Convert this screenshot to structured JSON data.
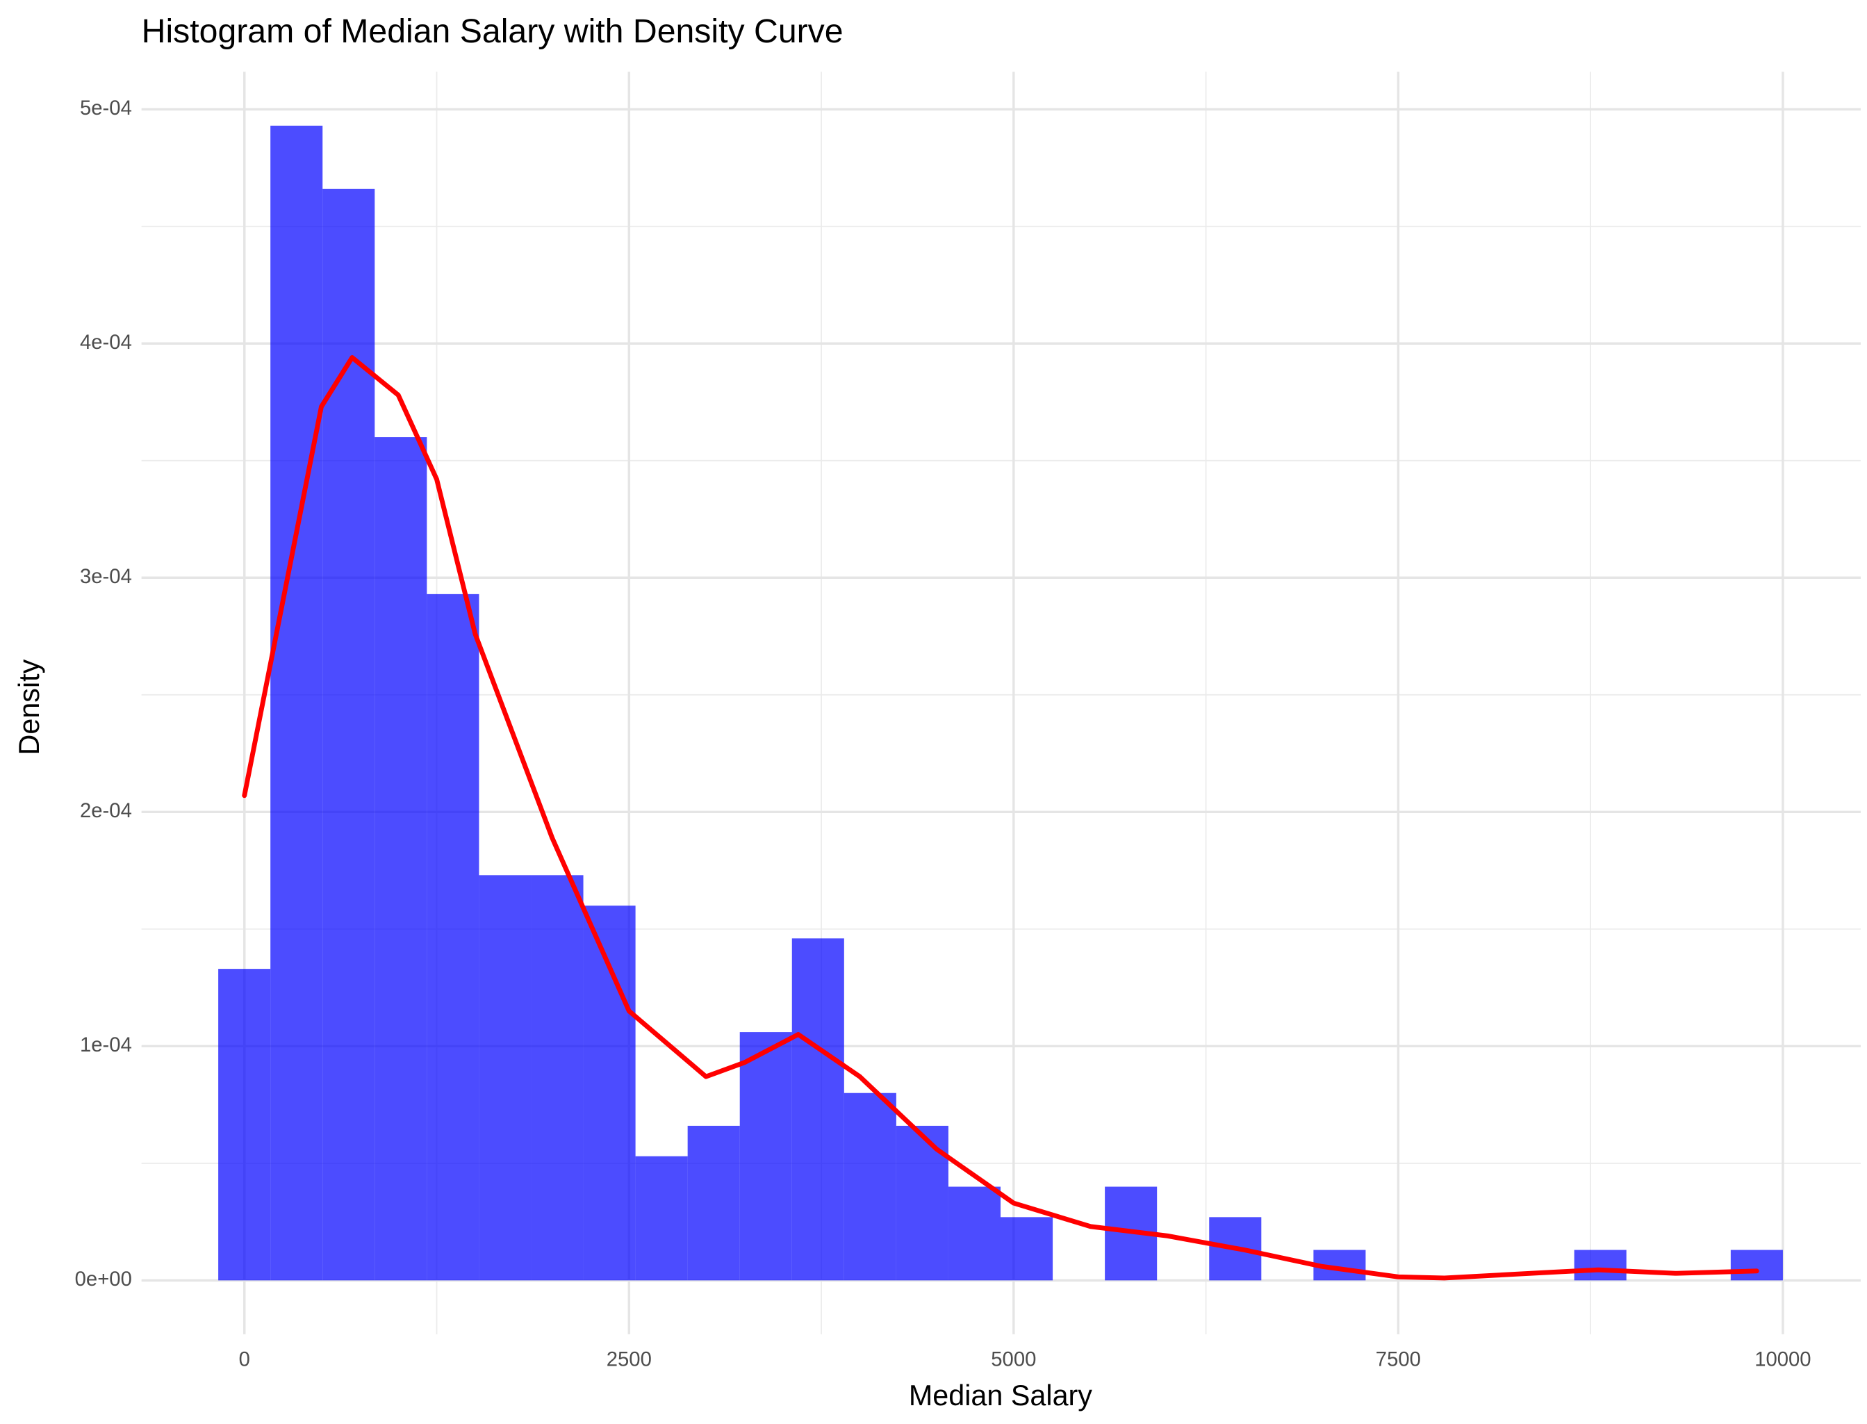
{
  "chart_data": {
    "type": "histogram",
    "title": "Histogram of Median Salary with Density Curve",
    "x_label": "Median Salary",
    "y_label": "Density",
    "bins": [
      -170,
      169,
      508,
      847,
      1186,
      1525,
      1864,
      2203,
      2542,
      2881,
      3220,
      3559,
      3898,
      4237,
      4576,
      4915,
      5254,
      5593,
      5932,
      6271,
      6610,
      6949,
      7288,
      7627,
      7966,
      8305,
      8644,
      8983,
      9322,
      9661,
      10000
    ],
    "values": [
      0.000133,
      0.000493,
      0.000466,
      0.00036,
      0.000293,
      0.000173,
      0.000173,
      0.00016,
      5.3e-05,
      6.6e-05,
      0.000106,
      0.000146,
      8e-05,
      6.6e-05,
      4e-05,
      2.7e-05,
      0,
      4e-05,
      0,
      2.7e-05,
      0,
      1.3e-05,
      0,
      0,
      0,
      0,
      1.3e-05,
      0,
      0,
      1.3e-05
    ],
    "color": "#0000ff",
    "density": {
      "color": "#ff0000",
      "x": [
        0,
        250,
        500,
        700,
        1000,
        1250,
        1500,
        2000,
        2500,
        3000,
        3250,
        3600,
        4000,
        4500,
        5000,
        5500,
        6000,
        6500,
        7000,
        7500,
        7800,
        8500,
        8800,
        9300,
        9830
      ],
      "y": [
        0.000207,
        0.00029,
        0.000373,
        0.000394,
        0.000378,
        0.000342,
        0.000276,
        0.000189,
        0.000115,
        8.7e-05,
        9.3e-05,
        0.000105,
        8.7e-05,
        5.6e-05,
        3.3e-05,
        2.3e-05,
        1.9e-05,
        1.3e-05,
        6e-06,
        1.5e-06,
        1e-06,
        3.5e-06,
        4.5e-06,
        3e-06,
        4e-06
      ]
    },
    "xlim": [
      -669,
      10506
    ],
    "ylim": [
      -2.3e-05,
      0.000516
    ],
    "xticks": [
      0,
      2500,
      5000,
      7500,
      10000
    ],
    "yticks": [
      {
        "value": 0,
        "label": "0e+00"
      },
      {
        "value": 0.0001,
        "label": "1e-04"
      },
      {
        "value": 0.0002,
        "label": "2e-04"
      },
      {
        "value": 0.0003,
        "label": "3e-04"
      },
      {
        "value": 0.0004,
        "label": "4e-04"
      },
      {
        "value": 0.0005,
        "label": "5e-04"
      }
    ],
    "grid": true
  }
}
